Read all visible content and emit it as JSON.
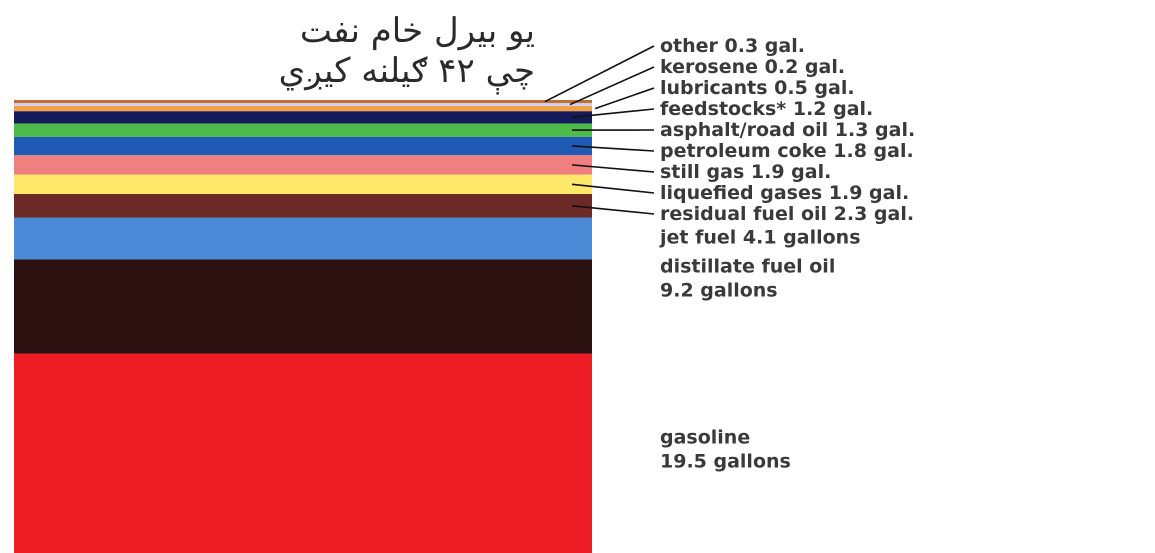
{
  "chart_data": {
    "type": "bar",
    "orientation": "stacked-vertical",
    "title_lines": [
      "یو بیرل خام نفت",
      "چې ۴۲ ګیلنه کیږي"
    ],
    "segments": [
      {
        "name": "gasoline",
        "value": 19.5,
        "label_lines": [
          "gasoline",
          "19.5 gallons"
        ],
        "color": "#ee1c25"
      },
      {
        "name": "distillate fuel oil",
        "value": 9.2,
        "label_lines": [
          "distillate fuel oil",
          "9.2 gallons"
        ],
        "color": "#2b1010"
      },
      {
        "name": "jet fuel",
        "value": 4.1,
        "label_lines": [
          "jet fuel 4.1 gallons"
        ],
        "color": "#4a8ad6"
      },
      {
        "name": "residual fuel oil",
        "value": 2.3,
        "label_lines": [
          "residual fuel oil 2.3 gal."
        ],
        "color": "#6b2a26"
      },
      {
        "name": "liquefied gases",
        "value": 1.9,
        "label_lines": [
          "liquefied gases 1.9 gal."
        ],
        "color": "#fde86a"
      },
      {
        "name": "still gas",
        "value": 1.9,
        "label_lines": [
          "still gas 1.9 gal."
        ],
        "color": "#f08080"
      },
      {
        "name": "petroleum coke",
        "value": 1.8,
        "label_lines": [
          "petroleum coke 1.8 gal."
        ],
        "color": "#1f5bb5"
      },
      {
        "name": "asphalt/road oil",
        "value": 1.3,
        "label_lines": [
          "asphalt/road oil 1.3 gal."
        ],
        "color": "#4cbb4a"
      },
      {
        "name": "feedstocks*",
        "value": 1.2,
        "label_lines": [
          "feedstocks* 1.2 gal."
        ],
        "color": "#141a5a"
      },
      {
        "name": "lubricants",
        "value": 0.5,
        "label_lines": [
          "lubricants 0.5 gal."
        ],
        "color": "#f0a040"
      },
      {
        "name": "kerosene",
        "value": 0.2,
        "label_lines": [
          "kerosene 0.2 gal."
        ],
        "color": "#d0d0f0"
      },
      {
        "name": "other",
        "value": 0.3,
        "label_lines": [
          "other 0.3 gal."
        ],
        "color": "#c07030"
      }
    ]
  }
}
